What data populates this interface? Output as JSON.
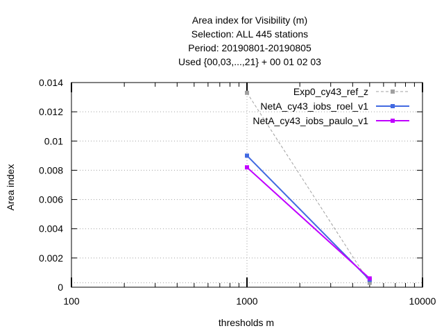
{
  "chart_data": {
    "type": "line",
    "title_lines": [
      "Area index  for Visibility (m)",
      "Selection: ALL    445 stations",
      "Period: 20190801-20190805",
      "Used {00,03,...,21} + 00 01 02 03"
    ],
    "xlabel": "thresholds m",
    "ylabel": "Area index",
    "x_scale": "log",
    "xlim": [
      100,
      10000
    ],
    "ylim": [
      0,
      0.014
    ],
    "x_ticks": [
      100,
      1000,
      10000
    ],
    "x_tick_labels": [
      "100",
      "1000",
      "10000"
    ],
    "y_ticks": [
      0,
      0.002,
      0.004,
      0.006,
      0.008,
      0.01,
      0.012,
      0.014
    ],
    "y_tick_labels": [
      "0",
      "0.002",
      "0.004",
      "0.006",
      "0.008",
      "0.01",
      "0.012",
      "0.014"
    ],
    "grid": true,
    "legend_position": "top-right",
    "series": [
      {
        "name": "Exp0_cy43_ref_z",
        "color": "#a0a0a0",
        "dash": "dashed",
        "x": [
          1000,
          5000
        ],
        "y": [
          0.0133,
          0.0003
        ]
      },
      {
        "name": "NetA_cy43_iobs_roel_v1",
        "color": "#4169e1",
        "dash": "solid",
        "x": [
          1000,
          5000
        ],
        "y": [
          0.009,
          0.0005
        ]
      },
      {
        "name": "NetA_cy43_iobs_paulo_v1",
        "color": "#c000ff",
        "dash": "solid",
        "x": [
          1000,
          5000
        ],
        "y": [
          0.0082,
          0.0006
        ]
      }
    ]
  }
}
